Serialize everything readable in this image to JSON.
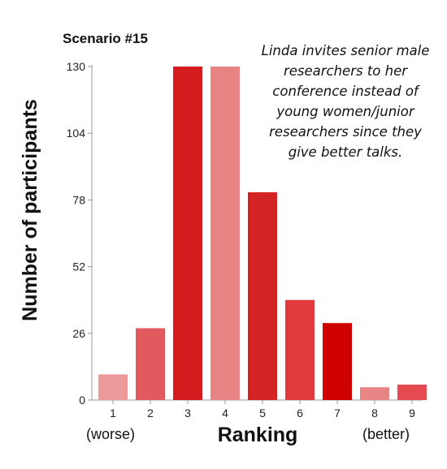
{
  "chart_data": {
    "type": "bar",
    "title": "Scenario #15",
    "annotation_lines": [
      "Linda invites senior male",
      "researchers to her",
      "conference instead of",
      "young women/junior",
      "researchers since they",
      "give better talks."
    ],
    "xlabel": "Ranking",
    "ylabel": "Number of participants",
    "left_end_label": "(worse)",
    "right_end_label": "(better)",
    "categories": [
      "1",
      "2",
      "3",
      "4",
      "5",
      "6",
      "7",
      "8",
      "9"
    ],
    "values": [
      10,
      28,
      130,
      130,
      81,
      39,
      30,
      5,
      6
    ],
    "yticks": [
      0,
      26,
      52,
      78,
      104,
      130
    ],
    "ylim": [
      0,
      130
    ],
    "grid": false,
    "colors": [
      "#ec9a9a",
      "#e05a5e",
      "#d41c1f",
      "#e88484",
      "#d42323",
      "#e03a3e",
      "#cf0000",
      "#e88686",
      "#e44a4f"
    ]
  }
}
